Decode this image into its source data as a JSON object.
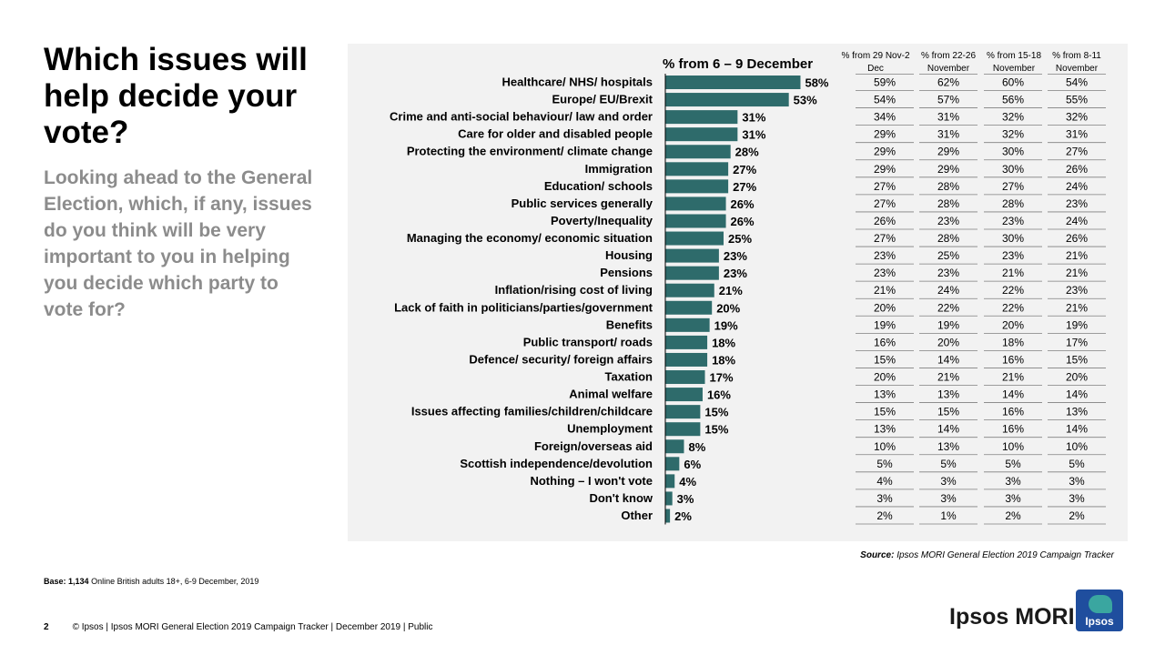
{
  "title": "Which issues will help decide your vote?",
  "subtitle": "Looking ahead to the General Election, which, if any, issues do you think will be very important to you in helping you decide which party to vote for?",
  "source": {
    "label": "Source:",
    "text": "Ipsos MORI General Election 2019 Campaign Tracker"
  },
  "base": {
    "label": "Base:",
    "count": "1,134",
    "text": "Online British adults 18+, 6-9 December, 2019"
  },
  "footer": {
    "page": "2",
    "text": "© Ipsos | Ipsos MORI General Election 2019 Campaign Tracker | December 2019 | Public"
  },
  "brand": {
    "name": "Ipsos MORI",
    "logo_text": "Ipsos"
  },
  "colors": {
    "bar": "#2e6b6b",
    "panel": "#f2f2f2",
    "line": "#7f7f7f"
  },
  "chart_data": {
    "type": "bar",
    "orientation": "horizontal",
    "title": "% from 6 – 9 December",
    "unit": "%",
    "categories": [
      "Healthcare/ NHS/ hospitals",
      "Europe/ EU/Brexit",
      "Crime and anti-social behaviour/ law and order",
      "Care for older and disabled people",
      "Protecting the environment/ climate change",
      "Immigration",
      "Education/ schools",
      "Public services generally",
      "Poverty/Inequality",
      "Managing the economy/ economic situation",
      "Housing",
      "Pensions",
      "Inflation/rising cost of living",
      "Lack of faith in politicians/parties/government",
      "Benefits",
      "Public transport/ roads",
      "Defence/ security/ foreign affairs",
      "Taxation",
      "Animal welfare",
      "Issues affecting families/children/childcare",
      "Unemployment",
      "Foreign/overseas aid",
      "Scottish independence/devolution",
      "Nothing – I won't vote",
      "Don't know",
      "Other"
    ],
    "values": [
      58,
      53,
      31,
      31,
      28,
      27,
      27,
      26,
      26,
      25,
      23,
      23,
      21,
      20,
      19,
      18,
      18,
      17,
      16,
      15,
      15,
      8,
      6,
      4,
      3,
      2
    ],
    "value_labels": [
      "58%",
      "53%",
      "31%",
      "31%",
      "28%",
      "27%",
      "27%",
      "26%",
      "26%",
      "25%",
      "23%",
      "23%",
      "21%",
      "20%",
      "19%",
      "18%",
      "18%",
      "17%",
      "16%",
      "15%",
      "15%",
      "8%",
      "6%",
      "4%",
      "3%",
      "2%"
    ],
    "xlim": [
      0,
      60
    ],
    "comparison_columns": [
      {
        "header": "% from 29 Nov-2 Dec",
        "values": [
          "59%",
          "54%",
          "34%",
          "29%",
          "29%",
          "29%",
          "27%",
          "27%",
          "26%",
          "27%",
          "23%",
          "23%",
          "21%",
          "20%",
          "19%",
          "16%",
          "15%",
          "20%",
          "13%",
          "15%",
          "13%",
          "10%",
          "5%",
          "4%",
          "3%",
          "2%"
        ]
      },
      {
        "header": "% from 22-26 November",
        "values": [
          "62%",
          "57%",
          "31%",
          "31%",
          "29%",
          "29%",
          "28%",
          "28%",
          "23%",
          "28%",
          "25%",
          "23%",
          "24%",
          "22%",
          "19%",
          "20%",
          "14%",
          "21%",
          "13%",
          "15%",
          "14%",
          "13%",
          "5%",
          "3%",
          "3%",
          "1%"
        ]
      },
      {
        "header": "% from 15-18 November",
        "values": [
          "60%",
          "56%",
          "32%",
          "32%",
          "30%",
          "30%",
          "27%",
          "28%",
          "23%",
          "30%",
          "23%",
          "21%",
          "22%",
          "22%",
          "20%",
          "18%",
          "16%",
          "21%",
          "14%",
          "16%",
          "16%",
          "10%",
          "5%",
          "3%",
          "3%",
          "2%"
        ]
      },
      {
        "header": "% from 8-11 November",
        "values": [
          "54%",
          "55%",
          "32%",
          "31%",
          "27%",
          "26%",
          "24%",
          "23%",
          "24%",
          "26%",
          "21%",
          "21%",
          "23%",
          "21%",
          "19%",
          "17%",
          "15%",
          "20%",
          "14%",
          "13%",
          "14%",
          "10%",
          "5%",
          "3%",
          "3%",
          "2%"
        ]
      }
    ]
  }
}
